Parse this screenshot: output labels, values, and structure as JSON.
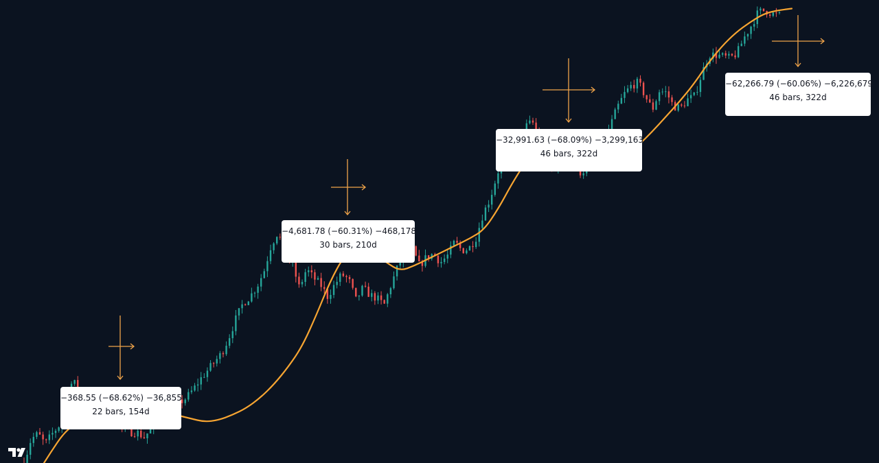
{
  "chart_data": {
    "type": "line",
    "title": "",
    "xlabel": "",
    "ylabel": "",
    "grid": false,
    "legend": "none",
    "candles_up_color": "#26a69a",
    "candles_down_color": "#ef5350",
    "ma_color": "#f7a532",
    "annotation_color": "#f0a44a",
    "series": [
      {
        "kind": "price-candles",
        "values": [
          0.2,
          1.6,
          1.9,
          1.3,
          1.9,
          2.4,
          4.6,
          4.9,
          4.5,
          3.9,
          3.7,
          3.3,
          3.0,
          2.8,
          2.2,
          2.0,
          2.0,
          1.7,
          2.2,
          2.6,
          2.9,
          3.3,
          3.7,
          4.0,
          4.5,
          5.1,
          5.6,
          6.1,
          6.6,
          7.5,
          8.6,
          9.5,
          9.9,
          10.5,
          11.4,
          12.9,
          13.7,
          12.2,
          11.8,
          10.4,
          11.5,
          11.0,
          10.6,
          9.9,
          10.6,
          11.2,
          10.9,
          9.7,
          10.4,
          10.0,
          9.8,
          9.4,
          10.6,
          11.7,
          12.7,
          12.7,
          11.7,
          12.2,
          12.4,
          11.9,
          12.3,
          13.1,
          12.6,
          12.7,
          13.3,
          14.7,
          15.6,
          17.0,
          18.4,
          18.4,
          18.5,
          19.8,
          20.1,
          19.1,
          18.2,
          17.1,
          17.9,
          17.8,
          17.4,
          17.1,
          17.7,
          18.3,
          18.9,
          19.8,
          20.9,
          21.7,
          22.2,
          22.4,
          21.6,
          20.8,
          21.9,
          21.8,
          21.0,
          20.9,
          21.4,
          21.6,
          22.9,
          24.0,
          24.0,
          23.9,
          23.8,
          24.1,
          25.0,
          25.7,
          26.5,
          26.6,
          26.4,
          26.3
        ]
      },
      {
        "kind": "moving-average",
        "values": [
          -0.5,
          0.8,
          2.0,
          2.6,
          3.2,
          3.6,
          3.8,
          3.9,
          3.7,
          3.3,
          3.0,
          2.8,
          2.6,
          2.7,
          3.0,
          3.4,
          4.0,
          4.8,
          5.8,
          7.0,
          8.8,
          10.8,
          12.3,
          12.8,
          12.5,
          11.9,
          11.4,
          11.7,
          12.1,
          12.5,
          12.9,
          13.3,
          13.8,
          15.0,
          16.5,
          17.8,
          18.8,
          19.1,
          18.8,
          18.1,
          17.7,
          17.7,
          18.1,
          18.7,
          19.5,
          20.4,
          21.3,
          22.3,
          23.5,
          24.5,
          25.3,
          25.9,
          26.4,
          26.6,
          26.7
        ]
      }
    ],
    "annotations": [
      {
        "line1": "−368.55 (−68.62%) −36,855",
        "line2": "22 bars, 154d"
      },
      {
        "line1": "−4,681.78 (−60.31%) −468,178",
        "line2": "30 bars, 210d"
      },
      {
        "line1": "−32,991.63 (−68.09%) −3,299,163",
        "line2": "46 bars, 322d"
      },
      {
        "line1": "−62,266.79 (−60.06%) −6,226,679",
        "line2": "46 bars, 322d"
      }
    ]
  }
}
